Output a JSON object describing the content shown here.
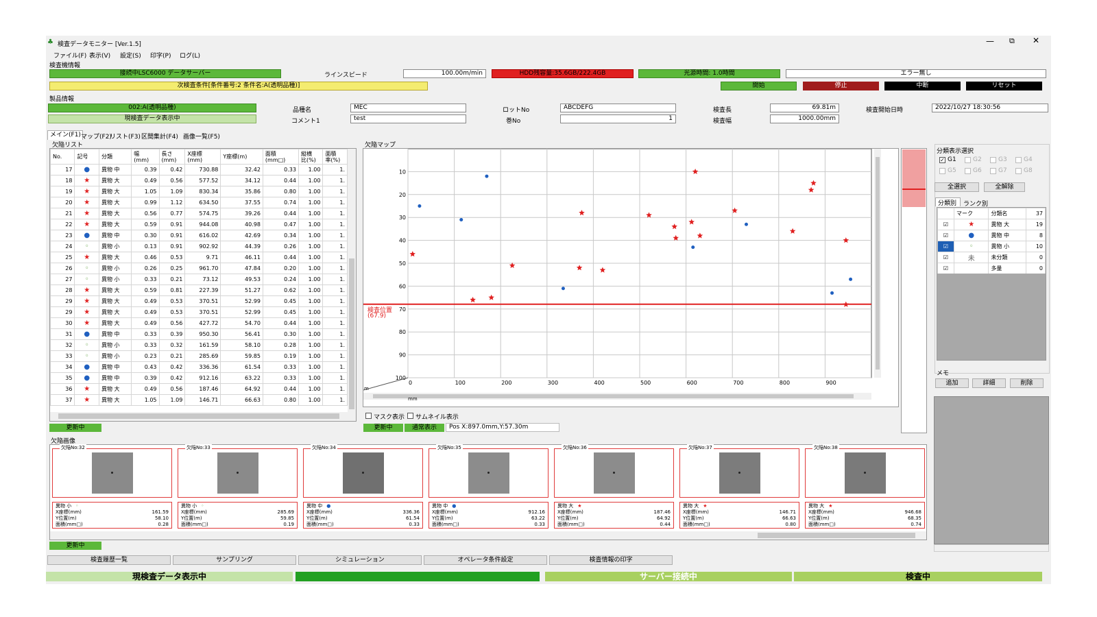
{
  "window": {
    "title": "検査データモニター [Ver.1.5]",
    "controls": [
      "—",
      "⧉",
      "✕"
    ]
  },
  "menu": [
    "ファイル(F)",
    "表示(V)",
    "設定(S)",
    "印字(P)",
    "ログ(L)"
  ],
  "inspector": {
    "section": "検査機情報",
    "connection": "接続中LSC6000 データサーバー",
    "line_speed_label": "ラインスピード",
    "line_speed": "100.00m/min",
    "hdd": "HDD残容量:35.6GB/222.4GB",
    "light": "光源時間: 1.0時間",
    "error": "エラー無し",
    "next_condition": "次検査条件[条件番号:2 条件名:A(透明品種)]",
    "buttons": {
      "start": "開始",
      "stop": "停止",
      "pause": "中断",
      "reset": "リセット"
    }
  },
  "product": {
    "section": "製品情報",
    "name_value": "002:A(透明品種)",
    "display_status": "現検査データ表示中",
    "type_label": "品種名",
    "type_value": "MEC",
    "comment_label": "コメント1",
    "comment_value": "test",
    "lot_label": "ロットNo",
    "lot_value": "ABCDEFG",
    "roll_label": "巻No",
    "roll_value": "1",
    "length_label": "検査長",
    "length_value": "69.81m",
    "width_label": "検査幅",
    "width_value": "1000.00mm",
    "start_label": "検査開始日時",
    "start_value": "2022/10/27 18:30:56"
  },
  "tabs": [
    "メイン(F1)",
    "マップ(F2)",
    "リスト(F3)",
    "区間集計(F4)",
    "画像一覧(F5)"
  ],
  "defect_list": {
    "title": "欠陥リスト",
    "headers": [
      "No.",
      "記号",
      "分類",
      "幅\n(mm)",
      "長さ\n(mm)",
      "X座標\n(mm)",
      "Y座標(m)",
      "面積\n(mm□)",
      "縦横\n比(%)",
      "面積\n率(%)"
    ],
    "rows": [
      [
        "17",
        "●",
        "異物 中",
        "0.39",
        "0.42",
        "730.88",
        "32.42",
        "0.33",
        "1.00",
        "1."
      ],
      [
        "18",
        "★",
        "異物 大",
        "0.49",
        "0.56",
        "577.52",
        "34.12",
        "0.44",
        "1.00",
        "1."
      ],
      [
        "19",
        "★",
        "異物 大",
        "1.05",
        "1.09",
        "830.34",
        "35.86",
        "0.80",
        "1.00",
        "1."
      ],
      [
        "20",
        "★",
        "異物 大",
        "0.99",
        "1.12",
        "634.50",
        "37.55",
        "0.74",
        "1.00",
        "1."
      ],
      [
        "21",
        "★",
        "異物 大",
        "0.56",
        "0.77",
        "574.75",
        "39.26",
        "0.44",
        "1.00",
        "1."
      ],
      [
        "22",
        "★",
        "異物 大",
        "0.59",
        "0.91",
        "944.08",
        "40.98",
        "0.47",
        "1.00",
        "1."
      ],
      [
        "23",
        "●",
        "異物 中",
        "0.30",
        "0.91",
        "616.02",
        "42.69",
        "0.34",
        "1.00",
        "1."
      ],
      [
        "24",
        "◦",
        "異物 小",
        "0.13",
        "0.91",
        "902.92",
        "44.39",
        "0.26",
        "1.00",
        "1."
      ],
      [
        "25",
        "★",
        "異物 大",
        "0.46",
        "0.53",
        "9.71",
        "46.11",
        "0.44",
        "1.00",
        "1."
      ],
      [
        "26",
        "◦",
        "異物 小",
        "0.26",
        "0.25",
        "961.70",
        "47.84",
        "0.20",
        "1.00",
        "1."
      ],
      [
        "27",
        "◦",
        "異物 小",
        "0.33",
        "0.21",
        "73.12",
        "49.53",
        "0.24",
        "1.00",
        "1."
      ],
      [
        "28",
        "★",
        "異物 大",
        "0.59",
        "0.81",
        "227.39",
        "51.27",
        "0.62",
        "1.00",
        "1."
      ],
      [
        "29",
        "★",
        "異物 大",
        "0.49",
        "0.53",
        "370.51",
        "52.99",
        "0.45",
        "1.00",
        "1."
      ],
      [
        "29",
        "★",
        "異物 大",
        "0.49",
        "0.53",
        "370.51",
        "52.99",
        "0.45",
        "1.00",
        "1."
      ],
      [
        "30",
        "★",
        "異物 大",
        "0.49",
        "0.56",
        "427.72",
        "54.70",
        "0.44",
        "1.00",
        "1."
      ],
      [
        "31",
        "●",
        "異物 中",
        "0.33",
        "0.39",
        "950.30",
        "56.41",
        "0.30",
        "1.00",
        "1."
      ],
      [
        "32",
        "◦",
        "異物 小",
        "0.33",
        "0.32",
        "161.59",
        "58.10",
        "0.28",
        "1.00",
        "1."
      ],
      [
        "33",
        "◦",
        "異物 小",
        "0.23",
        "0.21",
        "285.69",
        "59.85",
        "0.19",
        "1.00",
        "1."
      ],
      [
        "34",
        "●",
        "異物 中",
        "0.43",
        "0.42",
        "336.36",
        "61.54",
        "0.33",
        "1.00",
        "1."
      ],
      [
        "35",
        "●",
        "異物 中",
        "0.39",
        "0.42",
        "912.16",
        "63.22",
        "0.33",
        "1.00",
        "1."
      ],
      [
        "36",
        "★",
        "異物 大",
        "0.49",
        "0.56",
        "187.46",
        "64.92",
        "0.44",
        "1.00",
        "1."
      ],
      [
        "37",
        "★",
        "異物 大",
        "1.05",
        "1.09",
        "146.71",
        "66.63",
        "0.80",
        "1.00",
        "1."
      ]
    ],
    "status": "更新中"
  },
  "defect_map": {
    "title": "欠陥マップ",
    "position_label": "検査位置",
    "position_value": "(67.9)",
    "unit_m": "m",
    "unit_mm": "mm",
    "mask": "マスク表示",
    "thumb": "サムネイル表示",
    "status1": "更新中",
    "status2": "通常表示",
    "pos": "Pos X:897.0mm,Y:57.30m"
  },
  "chart_data": {
    "type": "scatter",
    "x_ticks": [
      "0",
      "100",
      "200",
      "300",
      "400",
      "500",
      "600",
      "700",
      "800",
      "900"
    ],
    "y_ticks": [
      "10",
      "20",
      "30",
      "40",
      "50",
      "60",
      "70",
      "80",
      "90",
      "100"
    ],
    "xlim": [
      0,
      1000
    ],
    "ylim": [
      0,
      100
    ],
    "inspection_position": 67.9,
    "points_large": [
      [
        10,
        46
      ],
      [
        140,
        66
      ],
      [
        180,
        65
      ],
      [
        225,
        51
      ],
      [
        370,
        52
      ],
      [
        375,
        28
      ],
      [
        420,
        53
      ],
      [
        520,
        29
      ],
      [
        575,
        34
      ],
      [
        578,
        39
      ],
      [
        612,
        32
      ],
      [
        620,
        10
      ],
      [
        630,
        38
      ],
      [
        705,
        27
      ],
      [
        830,
        36
      ],
      [
        870,
        18
      ],
      [
        875,
        15
      ],
      [
        945,
        40
      ],
      [
        945,
        68
      ]
    ],
    "points_medium": [
      [
        25,
        25
      ],
      [
        115,
        31
      ],
      [
        170,
        12
      ],
      [
        335,
        61
      ],
      [
        615,
        43
      ],
      [
        730,
        33
      ],
      [
        915,
        63
      ],
      [
        955,
        57
      ]
    ]
  },
  "category": {
    "title": "分類表示選択",
    "groups": [
      "G1",
      "G2",
      "G3",
      "G4",
      "G5",
      "G6",
      "G7",
      "G8"
    ],
    "select_all": "全選択",
    "deselect_all": "全解除",
    "tab1": "分類別",
    "tab2": "ランク別",
    "headers": [
      "マーク",
      "分類名",
      "37"
    ],
    "rows": [
      [
        "★",
        "異物 大",
        "19"
      ],
      [
        "●",
        "異物 中",
        "8"
      ],
      [
        "◦",
        "異物 小",
        "10"
      ],
      [
        "未",
        "未分類",
        "0"
      ],
      [
        "",
        "多量",
        "0"
      ]
    ]
  },
  "memo": {
    "title": "メモ",
    "add": "追加",
    "detail": "詳細",
    "delete": "削除"
  },
  "images": {
    "title": "欠陥画像",
    "status": "更新中",
    "cards": [
      {
        "label": "欠陥No:32",
        "cls": "異物 小",
        "mark": "◦",
        "x": "161.59",
        "y": "58.10",
        "a": "0.28"
      },
      {
        "label": "欠陥No:33",
        "cls": "異物 小",
        "mark": "◦",
        "x": "285.69",
        "y": "59.85",
        "a": "0.19"
      },
      {
        "label": "欠陥No:34",
        "cls": "異物 中",
        "mark": "●",
        "x": "336.36",
        "y": "61.54",
        "a": "0.33"
      },
      {
        "label": "欠陥No:35",
        "cls": "異物 中",
        "mark": "●",
        "x": "912.16",
        "y": "63.22",
        "a": "0.33"
      },
      {
        "label": "欠陥No:36",
        "cls": "異物 大",
        "mark": "★",
        "x": "187.46",
        "y": "64.92",
        "a": "0.44"
      },
      {
        "label": "欠陥No:37",
        "cls": "異物 大",
        "mark": "★",
        "x": "146.71",
        "y": "66.63",
        "a": "0.80"
      },
      {
        "label": "欠陥No:38",
        "cls": "異物 大",
        "mark": "★",
        "x": "946.68",
        "y": "68.35",
        "a": "0.74"
      }
    ],
    "xlabel": "X座標(mm)",
    "ylabel": "Y位置(m)",
    "alabel": "面積(mm□)"
  },
  "bottom_buttons": [
    "検査履歴一覧",
    "サンプリング",
    "シミュレーション",
    "オペレータ条件設定",
    "検査情報の印字"
  ],
  "statusbar": [
    "現検査データ表示中",
    "サーバー接続中",
    "検査中"
  ]
}
